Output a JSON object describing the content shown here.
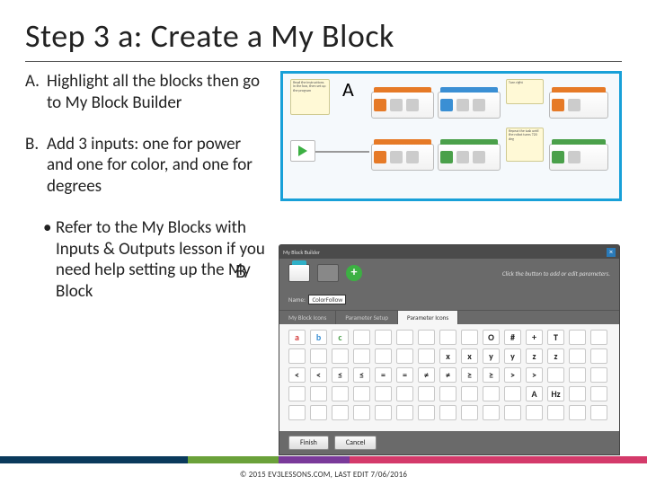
{
  "slide": {
    "title": "Step 3 a: Create a My Block",
    "title_fontsize": 36,
    "title_color": "#222222",
    "rule_color": "#555555",
    "background": "#ffffff"
  },
  "bullets": [
    {
      "marker": "A.",
      "text": "Highlight all the blocks then go to My Block Builder"
    },
    {
      "marker": "B.",
      "text": "Add 3 inputs: one for power and one for color, and one for degrees"
    },
    {
      "marker": "•",
      "text": "Refer to the My Blocks with Inputs & Outputs lesson if you need help setting up the My Block",
      "sub": true
    }
  ],
  "bullet_fontsize": 19,
  "figureA": {
    "label": "A",
    "border_color": "#18a0d8",
    "background": "#f5f9fc",
    "comments": [
      {
        "pos": "c1",
        "text": "Read the instructions in the box, then set up the program"
      },
      {
        "pos": "c2",
        "text": "Turn right"
      },
      {
        "pos": "c3",
        "text": "Repeat the task until the robot turns 720 deg"
      }
    ],
    "blocks": [
      {
        "cls": "b1",
        "hdr": "#e67a27"
      },
      {
        "cls": "b2",
        "hdr": "#3a8fd4"
      },
      {
        "cls": "b3",
        "hdr": "#e67a27"
      },
      {
        "cls": "b4",
        "hdr": "#e67a27"
      },
      {
        "cls": "b5",
        "hdr": "#4aa04a"
      },
      {
        "cls": "b6",
        "hdr": "#4aa04a"
      }
    ]
  },
  "figureB": {
    "label": "B",
    "window_title": "My Block Builder",
    "close_glyph": "×",
    "param_hint": "Click the button to add or edit parameters.",
    "name_label": "Name:",
    "name_value": "ColorFollow",
    "tabs": [
      "My Block Icons",
      "Parameter Setup",
      "Parameter Icons"
    ],
    "active_tab_index": 2,
    "icon_grid": {
      "rows": 5,
      "cols": 15,
      "samples": [
        [
          "a",
          "b",
          "c",
          "",
          "",
          "",
          "",
          "",
          "",
          "O",
          "#",
          "+",
          "T",
          "",
          ""
        ],
        [
          "",
          "",
          "",
          "",
          "",
          "",
          "",
          "x",
          "x",
          "y",
          "y",
          "z",
          "z",
          "",
          ""
        ],
        [
          "<",
          "<",
          "≤",
          "≤",
          "=",
          "=",
          "≠",
          "≠",
          "≥",
          "≥",
          ">",
          ">",
          "",
          "",
          ""
        ],
        [
          "",
          "",
          "",
          "",
          "",
          "",
          "",
          "",
          "",
          "",
          "",
          "A",
          "Hz",
          "",
          ""
        ],
        [
          "",
          "",
          "",
          "",
          "",
          "",
          "",
          "",
          "",
          "",
          "",
          "",
          "",
          "",
          ""
        ]
      ],
      "colors": {
        "r0c0": "#d43a3a",
        "r0c1": "#3a8fd4",
        "r0c2": "#4aa04a",
        "r0c3": "#e6c130",
        "r0c4": "#7a3a9a",
        "r1c0": "#d43a3a",
        "r1c1": "#d43a3a",
        "r1c2": "#3a8fd4",
        "r1c3": "#e67a27",
        "r1c4": "#4aa04a",
        "r3c0": "#d43a3a",
        "r3c1": "#3a8fd4",
        "r3c2": "#4aa04a",
        "r3c3": "#e6c130"
      }
    },
    "buttons": [
      "Finish",
      "Cancel"
    ],
    "panel_bg": "#6a6a6a",
    "icon_pane_bg": "#f6f6f6"
  },
  "footer": {
    "stripe_colors": [
      "#0a3a5c",
      "#6aa13a",
      "#7a3a9a",
      "#d43a6a"
    ],
    "stripe_widths_pct": [
      29,
      14,
      11,
      46
    ],
    "copyright": "© 2015 EV3LESSONS.COM, LAST EDIT 7/06/2016"
  }
}
